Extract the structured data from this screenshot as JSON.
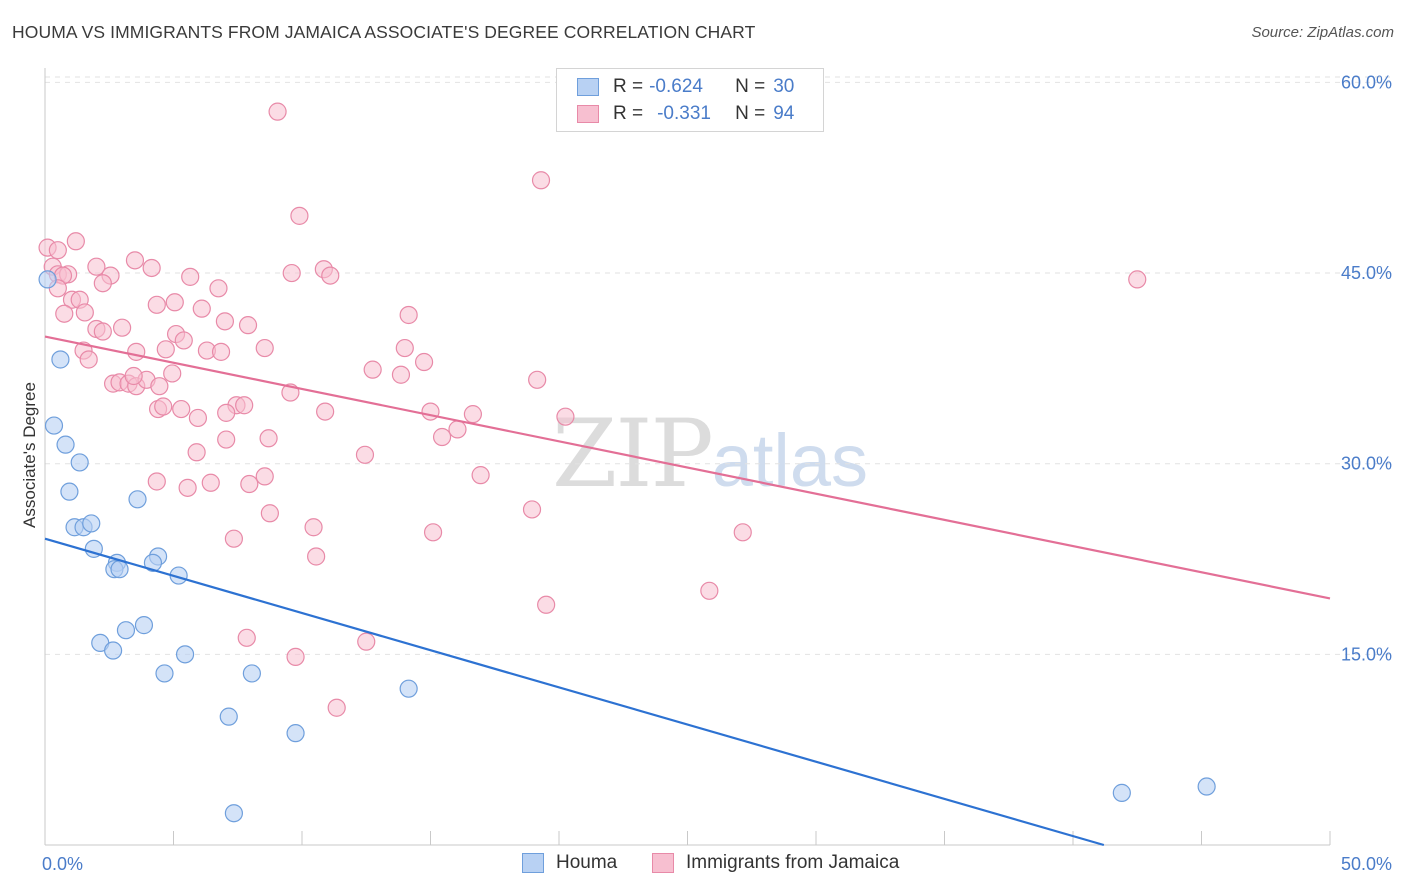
{
  "header": {
    "title": "HOUMA VS IMMIGRANTS FROM JAMAICA ASSOCIATE'S DEGREE CORRELATION CHART",
    "source": "Source: ZipAtlas.com"
  },
  "watermark": {
    "zip": "ZIP",
    "atlas": "atlas"
  },
  "legend": {
    "rows": [
      {
        "r_label": "R =",
        "r_value": "-0.624",
        "n_label": "N =",
        "n_value": "30"
      },
      {
        "r_label": "R =",
        "r_value": "-0.331",
        "n_label": "N =",
        "n_value": "94"
      }
    ]
  },
  "bottom_legend": [
    "Houma",
    "Immigrants from Jamaica"
  ],
  "colors": {
    "houma_fill": "#b8d1f3",
    "houma_stroke": "#6f9fdc",
    "houma_line": "#2d72d2",
    "jam_fill": "#f7bfd0",
    "jam_stroke": "#e88aa8",
    "jam_line": "#e36f96",
    "tick_text": "#4a7cc9",
    "grid": "#e2e2e2"
  },
  "chart_data": {
    "type": "scatter",
    "title": "HOUMA VS IMMIGRANTS FROM JAMAICA ASSOCIATE'S DEGREE CORRELATION CHART",
    "xlabel": "",
    "ylabel": "Associate's Degree",
    "xlim": [
      0,
      50
    ],
    "ylim": [
      0,
      61
    ],
    "x_tick_labels": [
      "0.0%",
      "50.0%"
    ],
    "y_ticks": [
      15,
      30,
      45,
      60
    ],
    "y_tick_labels": [
      "15.0%",
      "30.0%",
      "45.0%",
      "60.0%"
    ],
    "grid": "horizontal dashed",
    "legend_position": "top-center",
    "series": [
      {
        "name": "Houma",
        "r": -0.624,
        "n": 30,
        "trend": {
          "x": [
            0,
            41.2
          ],
          "y": [
            24.1,
            0
          ]
        },
        "points": [
          [
            0.1,
            44.5
          ],
          [
            0.6,
            38.2
          ],
          [
            0.35,
            33.0
          ],
          [
            0.8,
            31.5
          ],
          [
            1.35,
            30.1
          ],
          [
            0.95,
            27.8
          ],
          [
            3.6,
            27.2
          ],
          [
            1.15,
            25.0
          ],
          [
            1.5,
            25.0
          ],
          [
            1.8,
            25.3
          ],
          [
            1.9,
            23.3
          ],
          [
            2.8,
            22.2
          ],
          [
            4.4,
            22.7
          ],
          [
            2.7,
            21.7
          ],
          [
            2.9,
            21.7
          ],
          [
            4.2,
            22.2
          ],
          [
            5.2,
            21.2
          ],
          [
            3.85,
            17.3
          ],
          [
            3.15,
            16.9
          ],
          [
            2.15,
            15.9
          ],
          [
            2.65,
            15.3
          ],
          [
            5.45,
            15.0
          ],
          [
            4.65,
            13.5
          ],
          [
            8.05,
            13.5
          ],
          [
            14.15,
            12.3
          ],
          [
            7.15,
            10.1
          ],
          [
            9.75,
            8.8
          ],
          [
            7.35,
            2.5
          ],
          [
            41.9,
            4.1
          ],
          [
            45.2,
            4.6
          ]
        ]
      },
      {
        "name": "Immigrants from Jamaica",
        "r": -0.331,
        "n": 94,
        "trend": {
          "x": [
            0,
            50
          ],
          "y": [
            40.0,
            19.4
          ]
        },
        "points": [
          [
            0.1,
            47.0
          ],
          [
            0.5,
            46.8
          ],
          [
            1.2,
            47.5
          ],
          [
            0.3,
            45.5
          ],
          [
            2.0,
            45.5
          ],
          [
            0.5,
            44.9
          ],
          [
            0.9,
            44.9
          ],
          [
            0.7,
            44.8
          ],
          [
            2.55,
            44.8
          ],
          [
            5.65,
            44.7
          ],
          [
            9.6,
            45.0
          ],
          [
            10.85,
            45.3
          ],
          [
            11.1,
            44.8
          ],
          [
            3.5,
            46.0
          ],
          [
            4.15,
            45.4
          ],
          [
            42.5,
            44.5
          ],
          [
            0.5,
            43.8
          ],
          [
            2.25,
            44.2
          ],
          [
            6.75,
            43.8
          ],
          [
            1.05,
            42.9
          ],
          [
            1.35,
            42.9
          ],
          [
            4.35,
            42.5
          ],
          [
            5.05,
            42.7
          ],
          [
            0.75,
            41.8
          ],
          [
            1.55,
            41.9
          ],
          [
            6.1,
            42.2
          ],
          [
            7.0,
            41.2
          ],
          [
            14.15,
            41.7
          ],
          [
            2.0,
            40.6
          ],
          [
            2.25,
            40.4
          ],
          [
            3.0,
            40.7
          ],
          [
            5.1,
            40.2
          ],
          [
            5.4,
            39.7
          ],
          [
            7.9,
            40.9
          ],
          [
            1.5,
            38.9
          ],
          [
            3.55,
            38.8
          ],
          [
            4.7,
            39.0
          ],
          [
            6.3,
            38.9
          ],
          [
            6.85,
            38.8
          ],
          [
            8.55,
            39.1
          ],
          [
            14.0,
            39.1
          ],
          [
            1.7,
            38.2
          ],
          [
            14.75,
            38.0
          ],
          [
            12.75,
            37.4
          ],
          [
            13.85,
            37.0
          ],
          [
            19.15,
            36.6
          ],
          [
            4.95,
            37.1
          ],
          [
            2.65,
            36.3
          ],
          [
            2.9,
            36.4
          ],
          [
            3.25,
            36.3
          ],
          [
            3.55,
            36.1
          ],
          [
            3.95,
            36.6
          ],
          [
            4.45,
            36.1
          ],
          [
            9.55,
            35.6
          ],
          [
            3.45,
            36.9
          ],
          [
            4.4,
            34.3
          ],
          [
            4.6,
            34.5
          ],
          [
            5.3,
            34.3
          ],
          [
            7.45,
            34.6
          ],
          [
            7.75,
            34.6
          ],
          [
            7.05,
            34.0
          ],
          [
            10.9,
            34.1
          ],
          [
            15.0,
            34.1
          ],
          [
            16.65,
            33.9
          ],
          [
            20.25,
            33.7
          ],
          [
            5.95,
            33.6
          ],
          [
            16.05,
            32.7
          ],
          [
            15.45,
            32.1
          ],
          [
            7.05,
            31.9
          ],
          [
            8.7,
            32.0
          ],
          [
            5.9,
            30.9
          ],
          [
            12.45,
            30.7
          ],
          [
            16.95,
            29.1
          ],
          [
            4.35,
            28.6
          ],
          [
            6.45,
            28.5
          ],
          [
            8.55,
            29.0
          ],
          [
            5.55,
            28.1
          ],
          [
            7.95,
            28.4
          ],
          [
            18.95,
            26.4
          ],
          [
            8.75,
            26.1
          ],
          [
            10.45,
            25.0
          ],
          [
            15.1,
            24.6
          ],
          [
            27.15,
            24.6
          ],
          [
            7.35,
            24.1
          ],
          [
            10.55,
            22.7
          ],
          [
            25.85,
            20.0
          ],
          [
            19.5,
            18.9
          ],
          [
            7.85,
            16.3
          ],
          [
            12.5,
            16.0
          ],
          [
            9.75,
            14.8
          ],
          [
            11.35,
            10.8
          ],
          [
            9.05,
            57.7
          ],
          [
            19.3,
            52.3
          ],
          [
            9.9,
            49.5
          ]
        ]
      }
    ]
  }
}
